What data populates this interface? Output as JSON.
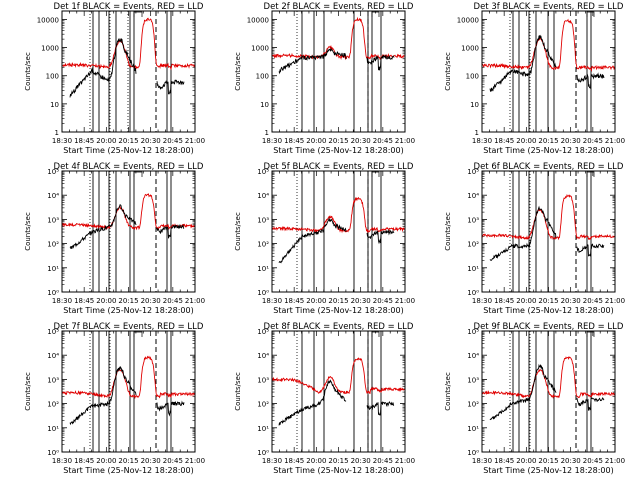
{
  "figure": {
    "colors": {
      "events": "#000000",
      "lld": "#e00000",
      "axes": "#000000",
      "background": "#ffffff"
    }
  },
  "chart_data": [
    {
      "type": "line",
      "title": "Det 1f BLACK = Events, RED = LLD",
      "xlabel": "Start Time (25-Nov-12 18:28:00)",
      "ylabel": "Counts/sec",
      "ylog": true,
      "ylim": [
        1,
        20000
      ],
      "yticks": [
        {
          "v": 1,
          "l": "1"
        },
        {
          "v": 10,
          "l": "10"
        },
        {
          "v": 100,
          "l": "100"
        },
        {
          "v": 1000,
          "l": "1000"
        },
        {
          "v": 10000,
          "l": "10000"
        }
      ],
      "xticks": [
        "18:30",
        "18:45",
        "20:00",
        "20:15",
        "20:30",
        "20:45",
        "21:00"
      ],
      "events_profile": {
        "base": 60,
        "rise_from": 20,
        "rise_to": 150,
        "start_gap": 8
      },
      "lld_profile": {
        "base": 230,
        "start": 245,
        "dip": 200
      },
      "peak1": {
        "x": 58,
        "events": 2000,
        "lld": 1800
      },
      "peak2": {
        "x": 86,
        "lld": 10000
      },
      "solid_lines": [
        31,
        37,
        47,
        54,
        68,
        72,
        105,
        109
      ],
      "dashed_lines": [
        94
      ],
      "dotted_lines": [
        28,
        48,
        66
      ],
      "bracket_x": [
        72,
        80
      ]
    },
    {
      "type": "line",
      "title": "Det 2f BLACK = Events, RED = LLD",
      "xlabel": "Start Time (25-Nov-12 18:28:00)",
      "ylabel": "Counts/sec",
      "ylog": true,
      "ylim": [
        1,
        20000
      ],
      "yticks": [
        {
          "v": 1,
          "l": "1"
        },
        {
          "v": 10,
          "l": "10"
        },
        {
          "v": 100,
          "l": "100"
        },
        {
          "v": 1000,
          "l": "1000"
        },
        {
          "v": 10000,
          "l": "10000"
        }
      ],
      "xticks": [
        "18:30",
        "18:45",
        "20:00",
        "20:15",
        "20:30",
        "20:45",
        "21:00"
      ],
      "events_profile": {
        "base": 450,
        "rise_from": 150,
        "rise_to": 450,
        "start_gap": 7
      },
      "lld_profile": {
        "base": 500,
        "start": 520,
        "dip": 460
      },
      "peak1": {
        "x": 58,
        "events": 800,
        "lld": 1000
      },
      "peak2": {
        "x": 86,
        "lld": 10000
      },
      "solid_lines": [
        30,
        42,
        52,
        82,
        96,
        100,
        109
      ],
      "dashed_lines": [
        96
      ],
      "dotted_lines": [
        25
      ],
      "bracket_x": [
        100,
        107
      ]
    },
    {
      "type": "line",
      "title": "Det 3f BLACK = Events, RED = LLD",
      "xlabel": "Start Time (25-Nov-12 18:28:00)",
      "ylabel": "Counts/sec",
      "ylog": true,
      "ylim": [
        1,
        20000
      ],
      "yticks": [
        {
          "v": 1,
          "l": "1"
        },
        {
          "v": 10,
          "l": "10"
        },
        {
          "v": 100,
          "l": "100"
        },
        {
          "v": 1000,
          "l": "1000"
        },
        {
          "v": 10000,
          "l": "10000"
        }
      ],
      "xticks": [
        "18:30",
        "18:45",
        "20:00",
        "20:15",
        "20:30",
        "20:45",
        "21:00"
      ],
      "events_profile": {
        "base": 100,
        "rise_from": 30,
        "rise_to": 150,
        "start_gap": 8
      },
      "lld_profile": {
        "base": 200,
        "start": 230,
        "dip": 190
      },
      "peak1": {
        "x": 58,
        "events": 2500,
        "lld": 2000
      },
      "peak2": {
        "x": 86,
        "lld": 9000
      },
      "solid_lines": [
        31,
        37,
        47,
        54,
        66,
        72,
        105,
        109
      ],
      "dashed_lines": [
        94
      ],
      "dotted_lines": [
        28,
        48
      ],
      "bracket_x": [
        105,
        112
      ]
    },
    {
      "type": "line",
      "title": "Det 4f BLACK = Events, RED = LLD",
      "xlabel": "Start Time (25-Nov-12 18:28:00)",
      "ylabel": "Counts/sec",
      "ylog": true,
      "ylim": [
        1,
        100000
      ],
      "yticks": [
        {
          "v": 1,
          "l": "10⁰"
        },
        {
          "v": 10,
          "l": "10¹"
        },
        {
          "v": 100,
          "l": "10²"
        },
        {
          "v": 1000,
          "l": "10³"
        },
        {
          "v": 10000,
          "l": "10⁴"
        },
        {
          "v": 100000,
          "l": "10⁵"
        }
      ],
      "xticks": [
        "18:30",
        "18:45",
        "20:00",
        "20:15",
        "20:30",
        "20:45",
        "21:00"
      ],
      "events_profile": {
        "base": 500,
        "rise_from": 60,
        "rise_to": 300,
        "start_gap": 8
      },
      "lld_profile": {
        "base": 550,
        "start": 600,
        "dip": 460
      },
      "peak1": {
        "x": 58,
        "events": 3500,
        "lld": 3000
      },
      "peak2": {
        "x": 86,
        "lld": 10000
      },
      "solid_lines": [
        31,
        37,
        47,
        54,
        68,
        72,
        105,
        109
      ],
      "dashed_lines": [
        94
      ],
      "dotted_lines": [
        28,
        48
      ],
      "bracket_x": [
        72,
        80
      ]
    },
    {
      "type": "line",
      "title": "Det 5f BLACK = Events, RED = LLD",
      "xlabel": "Start Time (25-Nov-12 18:28:00)",
      "ylabel": "Counts/sec",
      "ylog": true,
      "ylim": [
        1,
        100000
      ],
      "yticks": [
        {
          "v": 1,
          "l": "10⁰"
        },
        {
          "v": 10,
          "l": "10¹"
        },
        {
          "v": 100,
          "l": "10²"
        },
        {
          "v": 1000,
          "l": "10³"
        },
        {
          "v": 10000,
          "l": "10⁴"
        },
        {
          "v": 100000,
          "l": "10⁵"
        }
      ],
      "xticks": [
        "18:30",
        "18:45",
        "20:00",
        "20:15",
        "20:30",
        "20:45",
        "21:00"
      ],
      "events_profile": {
        "base": 300,
        "rise_from": 15,
        "rise_to": 200,
        "start_gap": 7
      },
      "lld_profile": {
        "base": 400,
        "start": 420,
        "dip": 350
      },
      "peak1": {
        "x": 58,
        "events": 1000,
        "lld": 1300
      },
      "peak2": {
        "x": 86,
        "lld": 7000
      },
      "solid_lines": [
        30,
        42,
        52,
        82,
        96,
        100,
        109
      ],
      "dashed_lines": [
        96
      ],
      "dotted_lines": [
        25
      ],
      "bracket_x": [
        100,
        107
      ]
    },
    {
      "type": "line",
      "title": "Det 6f BLACK = Events, RED = LLD",
      "xlabel": "Start Time (25-Nov-12 18:28:00)",
      "ylabel": "Counts/sec",
      "ylog": true,
      "ylim": [
        1,
        100000
      ],
      "yticks": [
        {
          "v": 1,
          "l": "10⁰"
        },
        {
          "v": 10,
          "l": "10¹"
        },
        {
          "v": 100,
          "l": "10²"
        },
        {
          "v": 1000,
          "l": "10³"
        },
        {
          "v": 10000,
          "l": "10⁴"
        },
        {
          "v": 100000,
          "l": "10⁵"
        }
      ],
      "xticks": [
        "18:30",
        "18:45",
        "20:00",
        "20:15",
        "20:30",
        "20:45",
        "21:00"
      ],
      "events_profile": {
        "base": 80,
        "rise_from": 20,
        "rise_to": 80,
        "start_gap": 8
      },
      "lld_profile": {
        "base": 200,
        "start": 220,
        "dip": 170
      },
      "peak1": {
        "x": 58,
        "events": 3000,
        "lld": 2500
      },
      "peak2": {
        "x": 86,
        "lld": 9000
      },
      "solid_lines": [
        31,
        37,
        47,
        54,
        66,
        72,
        105,
        109
      ],
      "dashed_lines": [
        94
      ],
      "dotted_lines": [
        28,
        48
      ],
      "bracket_x": [
        105,
        112
      ]
    },
    {
      "type": "line",
      "title": "Det 7f BLACK = Events, RED = LLD",
      "xlabel": "Start Time (25-Nov-12 18:28:00)",
      "ylabel": "Counts/sec",
      "ylog": true,
      "ylim": [
        1,
        100000
      ],
      "yticks": [
        {
          "v": 1,
          "l": "10⁰"
        },
        {
          "v": 10,
          "l": "10¹"
        },
        {
          "v": 100,
          "l": "10²"
        },
        {
          "v": 1000,
          "l": "10³"
        },
        {
          "v": 10000,
          "l": "10⁴"
        },
        {
          "v": 100000,
          "l": "10⁵"
        }
      ],
      "xticks": [
        "18:30",
        "18:45",
        "20:00",
        "20:15",
        "20:30",
        "20:45",
        "21:00"
      ],
      "events_profile": {
        "base": 100,
        "rise_from": 15,
        "rise_to": 80,
        "start_gap": 8
      },
      "lld_profile": {
        "base": 250,
        "start": 280,
        "dip": 200
      },
      "peak1": {
        "x": 58,
        "events": 3000,
        "lld": 2500
      },
      "peak2": {
        "x": 86,
        "lld": 8000
      },
      "solid_lines": [
        31,
        37,
        47,
        54,
        68,
        72,
        105,
        109
      ],
      "dashed_lines": [
        94
      ],
      "dotted_lines": [
        28,
        48
      ],
      "bracket_x": [
        72,
        80
      ]
    },
    {
      "type": "line",
      "title": "Det 8f BLACK = Events, RED = LLD",
      "xlabel": "Start Time (25-Nov-12 18:28:00)",
      "ylabel": "Counts/sec",
      "ylog": true,
      "ylim": [
        1,
        100000
      ],
      "yticks": [
        {
          "v": 1,
          "l": "10⁰"
        },
        {
          "v": 10,
          "l": "10¹"
        },
        {
          "v": 100,
          "l": "10²"
        },
        {
          "v": 1000,
          "l": "10³"
        },
        {
          "v": 10000,
          "l": "10⁴"
        },
        {
          "v": 100000,
          "l": "10⁵"
        }
      ],
      "xticks": [
        "18:30",
        "18:45",
        "20:00",
        "20:15",
        "20:30",
        "20:45",
        "21:00"
      ],
      "events_profile": {
        "base": 100,
        "rise_from": 15,
        "rise_to": 60,
        "start_gap": 7
      },
      "lld_profile": {
        "base": 400,
        "start": 1000,
        "dip": 300
      },
      "peak1": {
        "x": 58,
        "events": 800,
        "lld": 1200
      },
      "peak2": {
        "x": 86,
        "lld": 7000
      },
      "solid_lines": [
        30,
        42,
        52,
        82,
        96,
        100,
        109
      ],
      "dashed_lines": [
        96
      ],
      "dotted_lines": [
        25
      ],
      "bracket_x": [
        100,
        107
      ]
    },
    {
      "type": "line",
      "title": "Det 9f BLACK = Events, RED = LLD",
      "xlabel": "Start Time (25-Nov-12 18:28:00)",
      "ylabel": "Counts/sec",
      "ylog": true,
      "ylim": [
        1,
        100000
      ],
      "yticks": [
        {
          "v": 1,
          "l": "10⁰"
        },
        {
          "v": 10,
          "l": "10¹"
        },
        {
          "v": 100,
          "l": "10²"
        },
        {
          "v": 1000,
          "l": "10³"
        },
        {
          "v": 10000,
          "l": "10⁴"
        },
        {
          "v": 100000,
          "l": "10⁵"
        }
      ],
      "xticks": [
        "18:30",
        "18:45",
        "20:00",
        "20:15",
        "20:30",
        "20:45",
        "21:00"
      ],
      "events_profile": {
        "base": 150,
        "rise_from": 20,
        "rise_to": 100,
        "start_gap": 8
      },
      "lld_profile": {
        "base": 250,
        "start": 280,
        "dip": 200
      },
      "peak1": {
        "x": 58,
        "events": 3500,
        "lld": 2500
      },
      "peak2": {
        "x": 86,
        "lld": 8000
      },
      "solid_lines": [
        31,
        37,
        47,
        54,
        66,
        72,
        105,
        109
      ],
      "dashed_lines": [
        94
      ],
      "dotted_lines": [
        28,
        48
      ],
      "bracket_x": [
        105,
        112
      ]
    }
  ]
}
